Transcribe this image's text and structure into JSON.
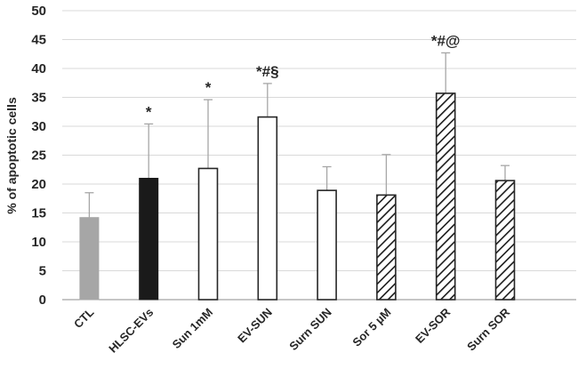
{
  "chart_data": {
    "type": "bar",
    "title": "",
    "xlabel": "",
    "ylabel": "% of apoptotic cells",
    "ylim": [
      0,
      50
    ],
    "yticks": [
      0,
      5,
      10,
      15,
      20,
      25,
      30,
      35,
      40,
      45,
      50
    ],
    "grid": true,
    "categories": [
      "CTL",
      "HLSC-EVs",
      "Sun 1mM",
      "EV-SUN",
      "Surn SUN",
      "Sor 5 µM",
      "EV-SOR",
      "Surn SOR"
    ],
    "values": [
      14.2,
      21.0,
      22.7,
      31.6,
      18.9,
      18.1,
      35.7,
      20.6
    ],
    "errors": [
      4.3,
      9.4,
      11.9,
      5.8,
      4.1,
      7.0,
      7.0,
      2.6
    ],
    "fills": [
      "gray",
      "black",
      "white",
      "white",
      "white",
      "hatched",
      "hatched",
      "hatched"
    ],
    "annotations": [
      "",
      "*",
      "*",
      "*#§",
      "",
      "",
      "*#@",
      ""
    ]
  },
  "colors": {
    "gray": "#a6a6a6",
    "black": "#1a1a1a",
    "outline": "#262626",
    "text": "#262626"
  }
}
